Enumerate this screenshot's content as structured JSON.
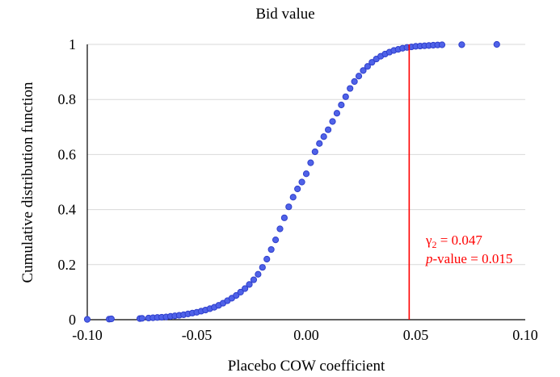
{
  "chart_data": {
    "type": "scatter",
    "title": "Bid value",
    "xlabel": "Placebo COW coefficient",
    "ylabel": "Cumulative distribution function",
    "xlim": [
      -0.1,
      0.1
    ],
    "ylim": [
      0,
      1
    ],
    "x_ticks": [
      -0.1,
      -0.05,
      0,
      0.05,
      0.1
    ],
    "x_tick_labels": [
      "-0.10",
      "-0.05",
      "0.00",
      "0.05",
      "0.10"
    ],
    "y_ticks": [
      0,
      0.2,
      0.4,
      0.6,
      0.8,
      1
    ],
    "y_tick_labels": [
      "0",
      "0.2",
      "0.4",
      "0.6",
      "0.8",
      "1"
    ],
    "grid": "horizontal",
    "marker_color": "#4F62E8",
    "marker_edge_color": "#2F3FCC",
    "reference_line": {
      "x": 0.047,
      "color": "#FF0000"
    },
    "annotation": {
      "gamma_symbol": "γ",
      "gamma_subscript": "2",
      "gamma_text": " = 0.047",
      "p_symbol": "p",
      "p_text": "-value = 0.015",
      "color": "#FF0000"
    },
    "points": [
      [
        -0.1,
        0.001
      ],
      [
        -0.09,
        0.002
      ],
      [
        -0.089,
        0.003
      ],
      [
        -0.076,
        0.004
      ],
      [
        -0.075,
        0.005
      ],
      [
        -0.072,
        0.006
      ],
      [
        -0.07,
        0.007
      ],
      [
        -0.068,
        0.008
      ],
      [
        -0.066,
        0.009
      ],
      [
        -0.064,
        0.01
      ],
      [
        -0.062,
        0.012
      ],
      [
        -0.06,
        0.014
      ],
      [
        -0.058,
        0.016
      ],
      [
        -0.056,
        0.018
      ],
      [
        -0.054,
        0.021
      ],
      [
        -0.052,
        0.024
      ],
      [
        -0.05,
        0.027
      ],
      [
        -0.048,
        0.031
      ],
      [
        -0.046,
        0.035
      ],
      [
        -0.044,
        0.04
      ],
      [
        -0.042,
        0.045
      ],
      [
        -0.04,
        0.052
      ],
      [
        -0.038,
        0.06
      ],
      [
        -0.036,
        0.069
      ],
      [
        -0.034,
        0.078
      ],
      [
        -0.032,
        0.088
      ],
      [
        -0.03,
        0.1
      ],
      [
        -0.028,
        0.113
      ],
      [
        -0.026,
        0.128
      ],
      [
        -0.024,
        0.145
      ],
      [
        -0.022,
        0.165
      ],
      [
        -0.02,
        0.19
      ],
      [
        -0.018,
        0.22
      ],
      [
        -0.016,
        0.255
      ],
      [
        -0.014,
        0.29
      ],
      [
        -0.012,
        0.33
      ],
      [
        -0.01,
        0.37
      ],
      [
        -0.008,
        0.41
      ],
      [
        -0.006,
        0.445
      ],
      [
        -0.004,
        0.475
      ],
      [
        -0.002,
        0.5
      ],
      [
        0.0,
        0.53
      ],
      [
        0.002,
        0.57
      ],
      [
        0.004,
        0.61
      ],
      [
        0.006,
        0.64
      ],
      [
        0.008,
        0.665
      ],
      [
        0.01,
        0.69
      ],
      [
        0.012,
        0.72
      ],
      [
        0.014,
        0.75
      ],
      [
        0.016,
        0.78
      ],
      [
        0.018,
        0.81
      ],
      [
        0.02,
        0.84
      ],
      [
        0.022,
        0.865
      ],
      [
        0.024,
        0.885
      ],
      [
        0.026,
        0.905
      ],
      [
        0.028,
        0.92
      ],
      [
        0.03,
        0.935
      ],
      [
        0.032,
        0.947
      ],
      [
        0.034,
        0.957
      ],
      [
        0.036,
        0.965
      ],
      [
        0.038,
        0.972
      ],
      [
        0.04,
        0.978
      ],
      [
        0.042,
        0.982
      ],
      [
        0.044,
        0.986
      ],
      [
        0.046,
        0.989
      ],
      [
        0.048,
        0.991
      ],
      [
        0.05,
        0.993
      ],
      [
        0.052,
        0.994
      ],
      [
        0.054,
        0.995
      ],
      [
        0.056,
        0.996
      ],
      [
        0.058,
        0.997
      ],
      [
        0.06,
        0.998
      ],
      [
        0.062,
        0.9985
      ],
      [
        0.071,
        0.999
      ],
      [
        0.087,
        1.0
      ]
    ]
  }
}
